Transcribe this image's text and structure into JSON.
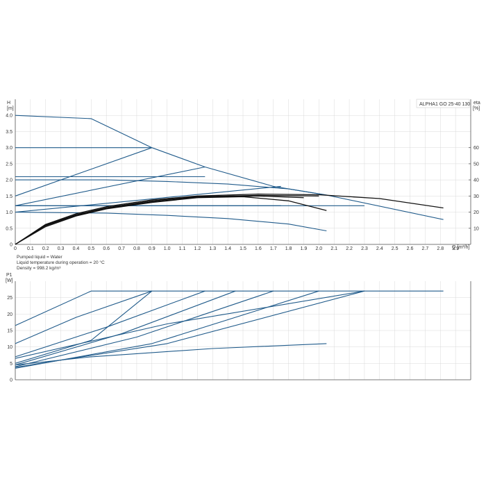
{
  "chart_data": [
    {
      "type": "line",
      "title": "ALPHA1 GO 25-40 130",
      "xlabel": "Q [m³/h]",
      "ylabel": "H [m]",
      "ylabel_lines": [
        "H",
        "[m]"
      ],
      "y2label": "eta [%]",
      "y2label_lines": [
        "eta",
        "[%]"
      ],
      "xlim": [
        0,
        3.0
      ],
      "ylim": [
        0,
        4.5
      ],
      "y2lim": [
        0,
        90
      ],
      "xticks": [
        "0",
        "0.1",
        "0.2",
        "0.3",
        "0.4",
        "0.5",
        "0.6",
        "0.7",
        "0.8",
        "0.9",
        "1.0",
        "1.1",
        "1.2",
        "1.3",
        "1.4",
        "1.5",
        "1.6",
        "1.7",
        "1.8",
        "1.9",
        "2.0",
        "2.1",
        "2.2",
        "2.3",
        "2.4",
        "2.5",
        "2.6",
        "2.7",
        "2.8",
        "2.9"
      ],
      "yticks": [
        "0",
        "0.5",
        "1.0",
        "1.5",
        "2.0",
        "2.5",
        "3.0",
        "3.5",
        "4.0"
      ],
      "y2ticks": [
        "10",
        "20",
        "30",
        "40",
        "50",
        "60"
      ],
      "grid": true,
      "series": [
        {
          "role": "head",
          "color": "#1f5a8a",
          "x": [
            0,
            0.5,
            0.9,
            1.25,
            1.7,
            2.05,
            2.82
          ],
          "y": [
            4.0,
            3.9,
            3.0,
            2.4,
            1.8,
            1.53,
            0.77
          ]
        },
        {
          "role": "head",
          "color": "#1f5a8a",
          "x": [
            0,
            0.9
          ],
          "y": [
            3.0,
            3.0
          ]
        },
        {
          "role": "head",
          "color": "#1f5a8a",
          "x": [
            0,
            0.9
          ],
          "y": [
            1.5,
            3.0
          ]
        },
        {
          "role": "head",
          "color": "#1f5a8a",
          "x": [
            0,
            1.25
          ],
          "y": [
            2.1,
            2.1
          ]
        },
        {
          "role": "head",
          "color": "#1f5a8a",
          "x": [
            0,
            1.25
          ],
          "y": [
            1.2,
            2.4
          ]
        },
        {
          "role": "head",
          "color": "#1f5a8a",
          "x": [
            0,
            1.75
          ],
          "y": [
            1.2,
            1.2
          ]
        },
        {
          "role": "head",
          "color": "#1f5a8a",
          "x": [
            0,
            1.75
          ],
          "y": [
            1.0,
            1.8
          ]
        },
        {
          "role": "head",
          "color": "#1f5a8a",
          "x": [
            0,
            0.6,
            1.0,
            1.4,
            1.8,
            2.05
          ],
          "y": [
            2.0,
            2.0,
            1.95,
            1.87,
            1.72,
            1.53
          ]
        },
        {
          "role": "head",
          "color": "#1f5a8a",
          "x": [
            0,
            0.6,
            1.0,
            1.4,
            1.8,
            2.05
          ],
          "y": [
            1.0,
            0.97,
            0.9,
            0.8,
            0.63,
            0.42
          ]
        },
        {
          "role": "head",
          "color": "#1f5a8a",
          "x": [
            0,
            2.3
          ],
          "y": [
            1.2,
            1.2
          ]
        },
        {
          "role": "efficiency",
          "color": "#111111",
          "x": [
            0,
            0.2,
            0.4,
            0.6,
            0.9,
            1.2,
            1.6,
            2.0,
            2.4,
            2.82
          ],
          "y": [
            0,
            0.62,
            0.95,
            1.17,
            1.38,
            1.5,
            1.56,
            1.54,
            1.42,
            1.13
          ]
        },
        {
          "role": "efficiency",
          "color": "#111111",
          "x": [
            0,
            0.2,
            0.4,
            0.6,
            0.9,
            1.2,
            1.6,
            2.0
          ],
          "y": [
            0,
            0.6,
            0.92,
            1.14,
            1.35,
            1.48,
            1.52,
            1.5
          ]
        },
        {
          "role": "efficiency",
          "color": "#111111",
          "x": [
            0,
            0.2,
            0.4,
            0.6,
            0.9,
            1.2,
            1.5,
            1.8,
            2.05
          ],
          "y": [
            0,
            0.55,
            0.88,
            1.1,
            1.3,
            1.45,
            1.48,
            1.35,
            1.05
          ]
        },
        {
          "role": "efficiency",
          "color": "#111111",
          "x": [
            0,
            0.2,
            0.4,
            0.6,
            0.9,
            1.2,
            1.6,
            1.9
          ],
          "y": [
            0,
            0.58,
            0.9,
            1.12,
            1.32,
            1.46,
            1.5,
            1.45
          ]
        }
      ]
    },
    {
      "type": "line",
      "title": "",
      "xlabel": "",
      "ylabel": "P1 [W]",
      "ylabel_lines": [
        "P1",
        "[W]"
      ],
      "xlim": [
        0,
        3.0
      ],
      "ylim": [
        0,
        30
      ],
      "yticks": [
        "0",
        "5",
        "10",
        "15",
        "20",
        "25"
      ],
      "grid": true,
      "series": [
        {
          "role": "power",
          "color": "#1f5a8a",
          "x": [
            0,
            0.5,
            2.82
          ],
          "y": [
            16.5,
            27,
            27
          ]
        },
        {
          "role": "power",
          "color": "#1f5a8a",
          "x": [
            0,
            0.4,
            0.9
          ],
          "y": [
            11,
            19,
            27
          ]
        },
        {
          "role": "power",
          "color": "#1f5a8a",
          "x": [
            0,
            0.5,
            0.9
          ],
          "y": [
            5,
            12,
            27
          ]
        },
        {
          "role": "power",
          "color": "#1f5a8a",
          "x": [
            0,
            0.6,
            1.25
          ],
          "y": [
            7,
            16,
            27
          ]
        },
        {
          "role": "power",
          "color": "#1f5a8a",
          "x": [
            0,
            0.7,
            1.45
          ],
          "y": [
            4.5,
            14,
            27
          ]
        },
        {
          "role": "power",
          "color": "#1f5a8a",
          "x": [
            0,
            0.8,
            1.7
          ],
          "y": [
            4,
            13,
            27
          ]
        },
        {
          "role": "power",
          "color": "#1f5a8a",
          "x": [
            0,
            0.9,
            2.0
          ],
          "y": [
            3.5,
            11,
            27
          ]
        },
        {
          "role": "power",
          "color": "#1f5a8a",
          "x": [
            0,
            1.0,
            2.3
          ],
          "y": [
            3.8,
            11,
            27
          ]
        },
        {
          "role": "power",
          "color": "#1f5a8a",
          "x": [
            0,
            1.0,
            2.3
          ],
          "y": [
            6.5,
            17,
            27
          ]
        },
        {
          "role": "power",
          "color": "#1f5a8a",
          "x": [
            0,
            0.5,
            1.3,
            2.05
          ],
          "y": [
            4.5,
            7,
            9.5,
            11
          ]
        }
      ]
    }
  ],
  "info": {
    "liquid": "Pumped liquid = Water",
    "temperature": "Liquid temperature during operation = 20 °C",
    "density": "Density = 998.2 kg/m³"
  }
}
